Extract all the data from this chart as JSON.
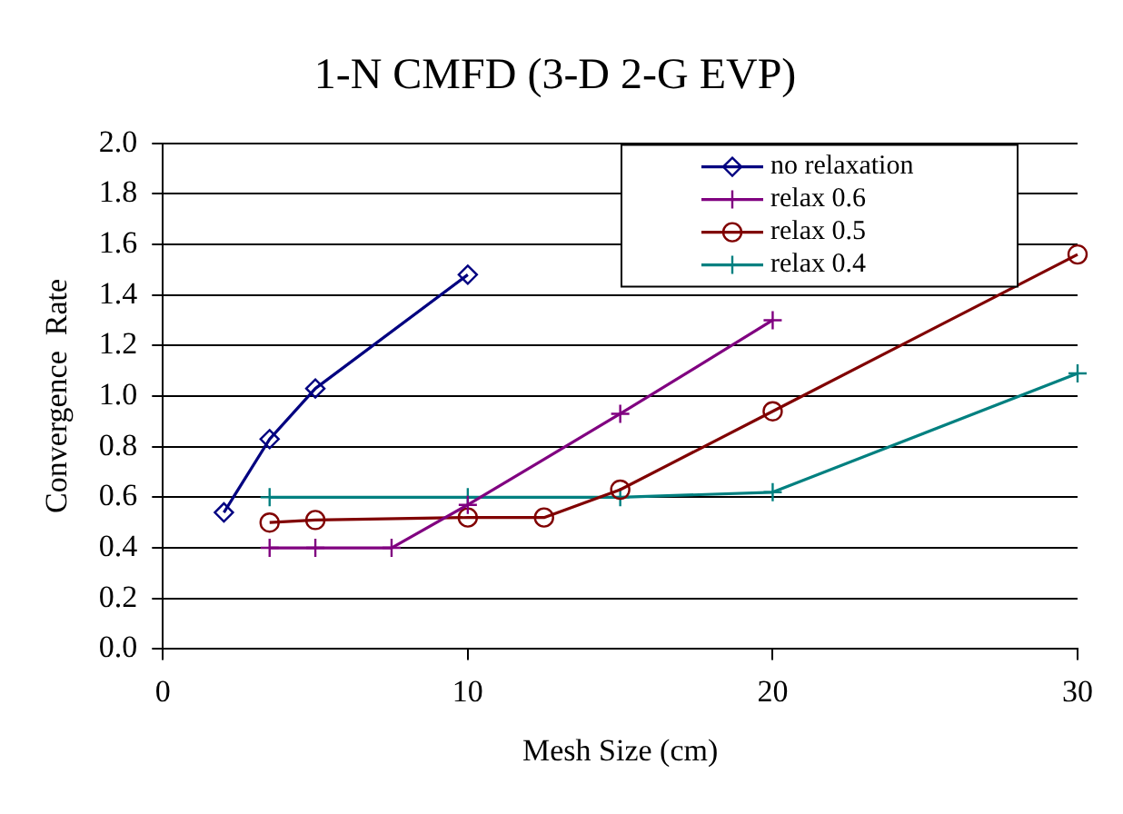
{
  "chart_data": {
    "type": "line",
    "title": "1-N CMFD (3-D 2-G EVP)",
    "xlabel": "Mesh Size (cm)",
    "ylabel": "Convergence  Rate",
    "xlim": [
      0,
      30
    ],
    "xticks": [
      0,
      10,
      20,
      30
    ],
    "ylim": [
      0,
      2
    ],
    "yticks": [
      {
        "value": 0,
        "label": "0.0"
      },
      {
        "value": 0.2,
        "label": "0.2"
      },
      {
        "value": 0.4,
        "label": "0.4"
      },
      {
        "value": 0.6,
        "label": "0.6"
      },
      {
        "value": 0.8,
        "label": "0.8"
      },
      {
        "value": 1,
        "label": "1.0"
      },
      {
        "value": 1.2,
        "label": "1.2"
      },
      {
        "value": 1.4,
        "label": "1.4"
      },
      {
        "value": 1.6,
        "label": "1.6"
      },
      {
        "value": 1.8,
        "label": "1.8"
      },
      {
        "value": 2,
        "label": "2.0"
      }
    ],
    "grid": "y",
    "legend": "top right",
    "series": [
      {
        "name": "no relaxation",
        "color": "#000080",
        "marker": "diamond",
        "x": [
          2,
          3.5,
          5,
          10
        ],
        "values": [
          0.54,
          0.83,
          1.03,
          1.48
        ]
      },
      {
        "name": "relax 0.6",
        "color": "#800080",
        "marker": "cross",
        "x": [
          3.5,
          5,
          7.5,
          10,
          15,
          20
        ],
        "values": [
          0.4,
          0.4,
          0.4,
          0.57,
          0.93,
          1.3
        ]
      },
      {
        "name": "relax 0.5",
        "color": "#800000",
        "marker": "circle",
        "x": [
          3.5,
          5,
          10,
          12.5,
          15,
          20,
          30
        ],
        "values": [
          0.5,
          0.51,
          0.52,
          0.52,
          0.63,
          0.94,
          1.56
        ]
      },
      {
        "name": "relax 0.4",
        "color": "#008080",
        "marker": "cross",
        "x": [
          3.5,
          10,
          15,
          20,
          30
        ],
        "values": [
          0.6,
          0.6,
          0.6,
          0.62,
          1.09
        ]
      }
    ]
  }
}
